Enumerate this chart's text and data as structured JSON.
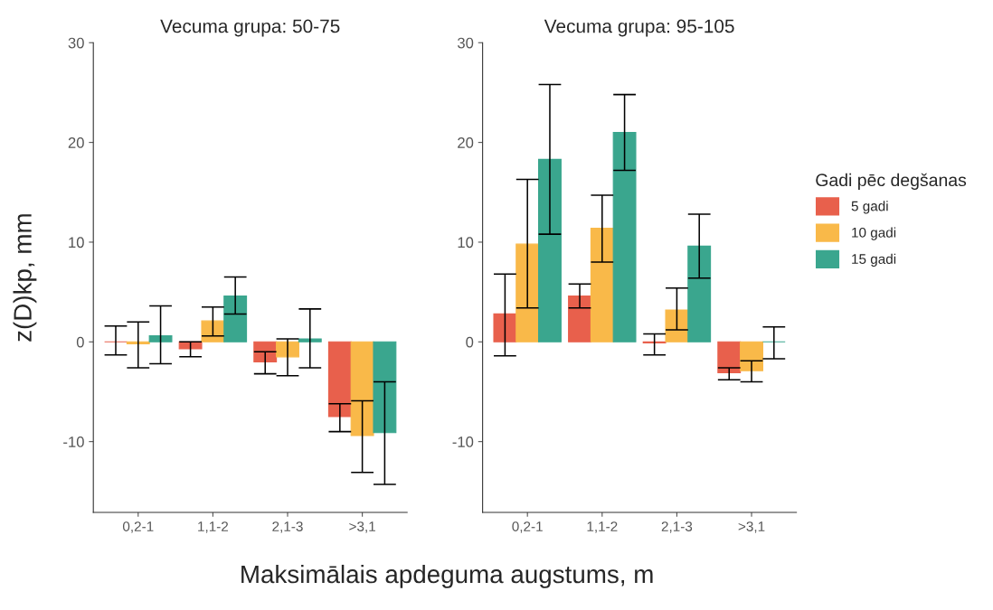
{
  "chart_data": [
    {
      "type": "bar",
      "title": "Vecuma grupa: 50-75",
      "ylabel": "z(D)kp, mm",
      "xlabel": "Maksimālais apdeguma augstums, m",
      "categories": [
        "0,2-1",
        "1,1-2",
        "2,1-3",
        ">3,1"
      ],
      "ylim": [
        -17.1,
        30
      ],
      "yticks": [
        -10,
        0,
        10,
        20,
        30
      ],
      "series": [
        {
          "color": "#e8604c",
          "values": [
            0.0,
            -0.7,
            -2.0,
            -7.5
          ],
          "errors": [
            [
              -1.3,
              1.6
            ],
            [
              -1.5,
              0.0
            ],
            [
              -3.2,
              -1.0
            ],
            [
              -9.0,
              -6.2
            ]
          ]
        },
        {
          "color": "#f9b949",
          "values": [
            -0.2,
            2.1,
            -1.5,
            -9.4
          ],
          "errors": [
            [
              -2.6,
              2.0
            ],
            [
              0.6,
              3.5
            ],
            [
              -3.4,
              0.3
            ],
            [
              -13.1,
              -5.9
            ]
          ]
        },
        {
          "color": "#3aa68e",
          "values": [
            0.6,
            4.6,
            0.3,
            -9.1
          ],
          "errors": [
            [
              -2.2,
              3.6
            ],
            [
              2.8,
              6.5
            ],
            [
              -2.6,
              3.3
            ],
            [
              -14.3,
              -4.0
            ]
          ]
        }
      ]
    },
    {
      "type": "bar",
      "title": "Vecuma grupa: 95-105",
      "categories": [
        "0,2-1",
        "1,1-2",
        "2,1-3",
        ">3,1"
      ],
      "ylim": [
        -17.1,
        30
      ],
      "yticks": [
        -10,
        0,
        10,
        20,
        30
      ],
      "legend": "right",
      "legend_title": "Gadi pēc degšanas",
      "series": [
        {
          "name": "5 gadi",
          "color": "#e8604c",
          "values": [
            2.8,
            4.6,
            -0.1,
            -3.1
          ],
          "errors": [
            [
              -1.4,
              6.8
            ],
            [
              3.4,
              5.8
            ],
            [
              -1.3,
              0.8
            ],
            [
              -3.8,
              -2.6
            ]
          ]
        },
        {
          "name": "10 gadi",
          "color": "#f9b949",
          "values": [
            9.8,
            11.4,
            3.2,
            -2.9
          ],
          "errors": [
            [
              3.4,
              16.3
            ],
            [
              8.0,
              14.7
            ],
            [
              1.2,
              5.4
            ],
            [
              -4.0,
              -1.9
            ]
          ]
        },
        {
          "name": "15 gadi",
          "color": "#3aa68e",
          "values": [
            18.3,
            21.0,
            9.6,
            0.0
          ],
          "errors": [
            [
              10.8,
              25.8
            ],
            [
              17.2,
              24.8
            ],
            [
              6.4,
              12.8
            ],
            [
              -1.7,
              1.5
            ]
          ]
        }
      ]
    }
  ]
}
